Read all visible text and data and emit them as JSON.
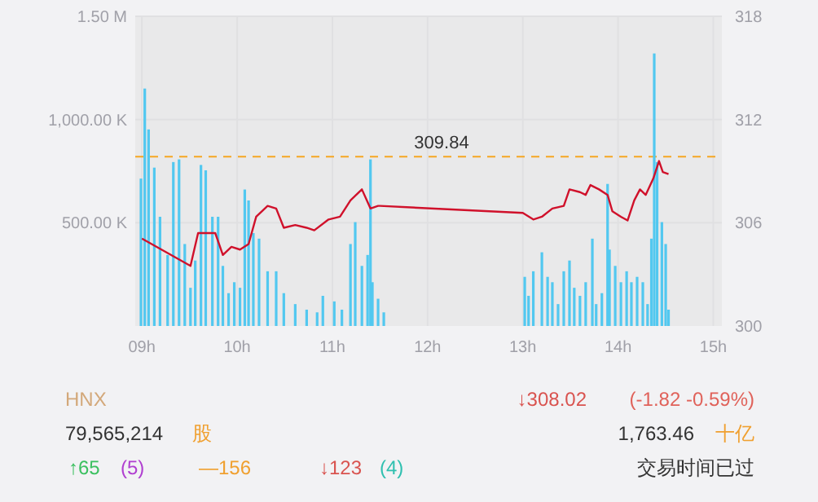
{
  "chart_data": [
    {
      "type": "bar",
      "xlim": [
        8.93,
        15.09
      ],
      "xticks": [
        {
          "value": 9,
          "label": "09h"
        },
        {
          "value": 10,
          "label": "10h"
        },
        {
          "value": 11,
          "label": "11h"
        },
        {
          "value": 12,
          "label": "12h"
        },
        {
          "value": 13,
          "label": "13h"
        },
        {
          "value": 14,
          "label": "14h"
        },
        {
          "value": 15,
          "label": "15h"
        }
      ],
      "ylim": [
        0,
        1500000
      ],
      "yticks": [
        {
          "value": 500000,
          "label": "500.00 K"
        },
        {
          "value": 1000000,
          "label": "1,000.00 K"
        },
        {
          "value": 1500000,
          "label": "1.50 M"
        }
      ],
      "y2lim": [
        300,
        318
      ],
      "y2ticks": [
        300,
        306,
        312,
        318
      ],
      "grid": true,
      "series": [
        {
          "type": "bar",
          "color": "#52c8f0",
          "x": [
            8.99,
            9.03,
            9.07,
            9.13,
            9.19,
            9.27,
            9.33,
            9.39,
            9.45,
            9.51,
            9.56,
            9.62,
            9.67,
            9.74,
            9.8,
            9.85,
            9.91,
            9.97,
            10.03,
            10.08,
            10.12,
            10.17,
            10.23,
            10.32,
            10.41,
            10.49,
            10.61,
            10.73,
            10.84,
            10.9,
            11.02,
            11.1,
            11.19,
            11.24,
            11.31,
            11.37,
            11.4,
            11.42,
            11.48,
            11.54,
            13.02,
            13.06,
            13.11,
            13.2,
            13.26,
            13.31,
            13.37,
            13.43,
            13.49,
            13.54,
            13.6,
            13.66,
            13.73,
            13.77,
            13.83,
            13.89,
            13.91,
            13.97,
            14.03,
            14.09,
            14.14,
            14.2,
            14.26,
            14.31,
            14.35,
            14.38,
            14.41,
            14.46,
            14.5,
            14.53
          ],
          "values": [
            714000,
            1150000,
            952000,
            767000,
            529000,
            344000,
            794000,
            807000,
            397000,
            185000,
            317000,
            780000,
            754000,
            529000,
            529000,
            291000,
            159000,
            212000,
            185000,
            661000,
            608000,
            450000,
            423000,
            265000,
            265000,
            159000,
            106000,
            79000,
            66000,
            146000,
            119000,
            79000,
            397000,
            503000,
            291000,
            344000,
            807000,
            212000,
            132000,
            66000,
            238000,
            146000,
            265000,
            357000,
            238000,
            212000,
            106000,
            265000,
            317000,
            185000,
            146000,
            212000,
            423000,
            106000,
            159000,
            688000,
            370000,
            291000,
            212000,
            265000,
            212000,
            238000,
            212000,
            106000,
            423000,
            1320000,
            794000,
            503000,
            397000,
            79000
          ]
        },
        {
          "type": "line",
          "axis": "y2",
          "color": "#d0112b",
          "x": [
            9.0,
            9.51,
            9.59,
            9.77,
            9.85,
            9.94,
            10.03,
            10.12,
            10.2,
            10.32,
            10.41,
            10.49,
            10.61,
            10.73,
            10.81,
            10.96,
            11.08,
            11.19,
            11.31,
            11.4,
            11.48,
            11.5,
            13.0,
            13.11,
            13.2,
            13.31,
            13.43,
            13.49,
            13.6,
            13.66,
            13.71,
            13.8,
            13.89,
            13.94,
            14.03,
            14.1,
            14.17,
            14.23,
            14.29,
            14.37,
            14.43,
            14.47,
            14.53
          ],
          "values": [
            305.08,
            303.49,
            305.4,
            305.4,
            304.13,
            304.6,
            304.44,
            304.76,
            306.35,
            306.98,
            306.83,
            305.71,
            305.87,
            305.71,
            305.56,
            306.19,
            306.35,
            307.3,
            307.94,
            306.83,
            306.98,
            306.98,
            306.57,
            306.19,
            306.35,
            306.83,
            306.98,
            307.94,
            307.78,
            307.62,
            308.19,
            307.94,
            307.62,
            306.67,
            306.35,
            306.13,
            307.3,
            307.94,
            307.62,
            308.57,
            309.59,
            308.95,
            308.83
          ]
        }
      ],
      "ref_lines": [
        {
          "axis": "y2",
          "value": 309.84,
          "label": "309.84",
          "color": "#f5a623",
          "line_style": "dashed"
        }
      ]
    },
    {
      "type": "other",
      "annotations": [
        "HNX",
        "↓308.02",
        "(-1.82  -0.59%)",
        "79,565,214",
        "股",
        "1,763.46",
        "十亿",
        "↑65",
        "(5)",
        "—156",
        "↓123",
        "(4)",
        "交易时间已过"
      ]
    }
  ]
}
